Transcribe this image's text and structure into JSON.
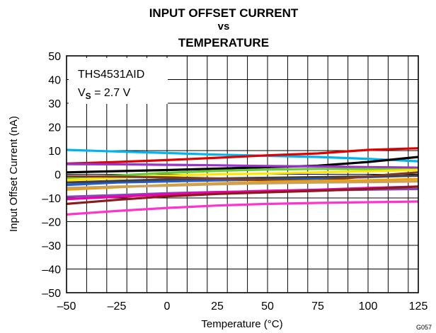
{
  "chart_data": {
    "type": "line",
    "title_lines": [
      "INPUT OFFSET CURRENT",
      "vs",
      "TEMPERATURE"
    ],
    "xlabel": "Temperature (°C)",
    "ylabel": "Input Offset Current (nA)",
    "xlim": [
      -50,
      125
    ],
    "ylim": [
      -50,
      50
    ],
    "grid": true,
    "x_major_ticks": [
      -50,
      -25,
      0,
      25,
      50,
      75,
      100,
      125
    ],
    "x_tick_labels": [
      "–50",
      "–25",
      "0",
      "25",
      "50",
      "75",
      "100",
      "125"
    ],
    "y_major_ticks": [
      -50,
      -40,
      -30,
      -20,
      -10,
      0,
      10,
      20,
      30,
      40,
      50
    ],
    "y_tick_labels": [
      "–50",
      "–40",
      "–30",
      "–20",
      "–10",
      "0",
      "10",
      "20",
      "30",
      "40",
      "50"
    ],
    "annotation": {
      "line1": "THS4531AID",
      "line2_prefix": "V",
      "line2_sub": "S",
      "line2_suffix": " = 2.7 V"
    },
    "figure_code": "G057",
    "x": [
      -50,
      -25,
      0,
      25,
      50,
      75,
      100,
      125
    ],
    "series": [
      {
        "color": "#00b4f0",
        "values": [
          10.3,
          9.6,
          9.0,
          8.3,
          7.8,
          7.3,
          6.5,
          5.5
        ]
      },
      {
        "color": "#e00000",
        "values": [
          4.5,
          5.2,
          6.0,
          7.0,
          8.0,
          8.8,
          10.3,
          11.0
        ]
      },
      {
        "color": "#000000",
        "values": [
          0.8,
          1.3,
          1.8,
          2.4,
          3.0,
          3.6,
          5.2,
          7.3
        ]
      },
      {
        "color": "#9933cc",
        "values": [
          4.3,
          4.2,
          4.0,
          3.8,
          3.5,
          3.3,
          3.0,
          2.8
        ]
      },
      {
        "color": "#66cc33",
        "values": [
          -1.5,
          -0.5,
          0.6,
          1.5,
          2.0,
          2.3,
          2.2,
          2.0
        ]
      },
      {
        "color": "#ffe600",
        "values": [
          -2.5,
          -1.5,
          -0.5,
          0.0,
          0.3,
          0.8,
          1.3,
          1.8
        ]
      },
      {
        "color": "#1f5fd6",
        "values": [
          -4.5,
          -3.5,
          -3.0,
          -2.6,
          -2.2,
          -1.8,
          -1.2,
          -0.5
        ]
      },
      {
        "color": "#404040",
        "values": [
          -3.5,
          -2.8,
          -2.2,
          -1.8,
          -1.5,
          -1.2,
          -0.9,
          -0.6
        ]
      },
      {
        "color": "#7a3b2a",
        "values": [
          -0.8,
          -1.0,
          -1.3,
          -1.8,
          -2.5,
          -2.8,
          -0.8,
          0.8
        ]
      },
      {
        "color": "#f0a000",
        "values": [
          -6.5,
          -5.5,
          -4.5,
          -3.8,
          -3.2,
          -2.8,
          -2.5,
          -2.0
        ]
      },
      {
        "color": "#c8a060",
        "values": [
          -5.8,
          -5.2,
          -4.8,
          -4.2,
          -3.8,
          -3.5,
          -3.3,
          -3.0
        ]
      },
      {
        "color": "#8844bb",
        "values": [
          -9.5,
          -8.8,
          -8.0,
          -7.5,
          -7.2,
          -6.8,
          -6.5,
          -6.2
        ]
      },
      {
        "color": "#ee00aa",
        "values": [
          -10.5,
          -9.5,
          -8.5,
          -7.6,
          -7.0,
          -6.5,
          -5.8,
          -5.2
        ]
      },
      {
        "color": "#8b1a1a",
        "values": [
          -12.5,
          -10.8,
          -9.3,
          -8.3,
          -7.6,
          -7.0,
          -6.2,
          -5.2
        ]
      },
      {
        "color": "#ff33cc",
        "values": [
          -17.0,
          -15.5,
          -14.2,
          -13.2,
          -12.5,
          -12.1,
          -11.8,
          -11.5
        ]
      }
    ]
  }
}
